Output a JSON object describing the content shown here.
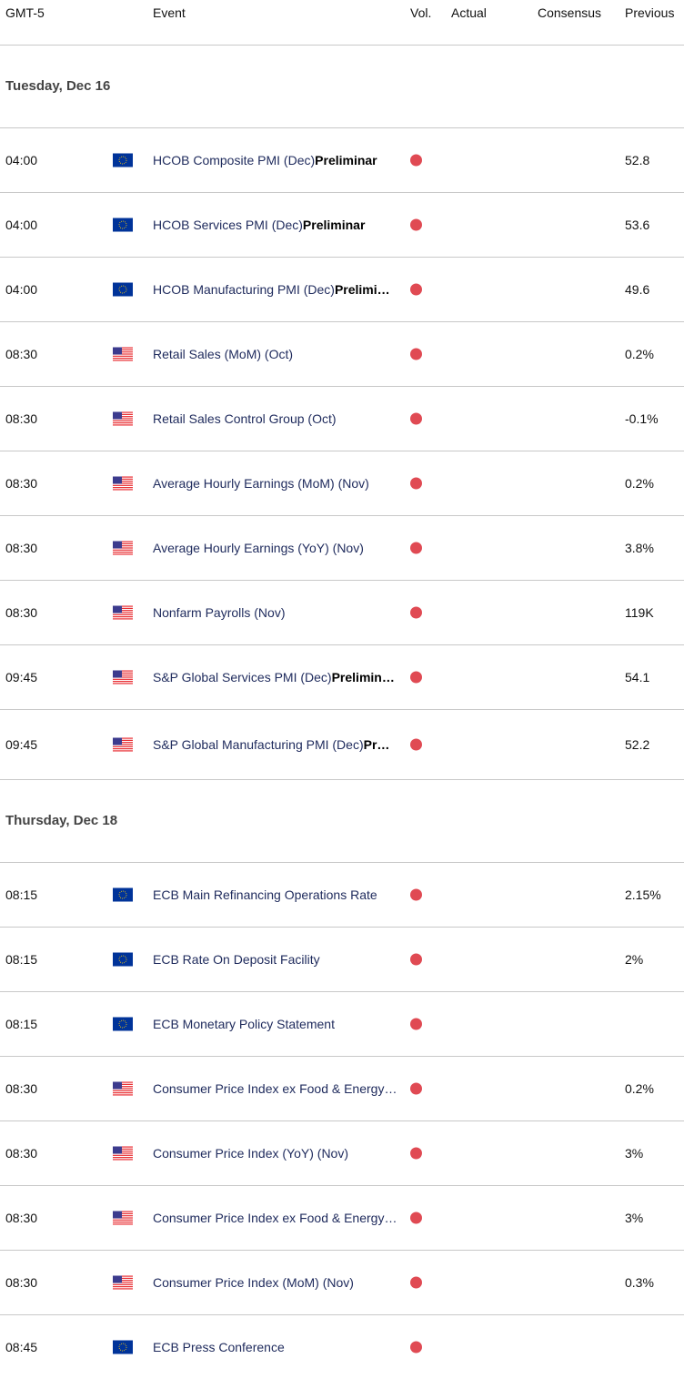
{
  "header": {
    "tz": "GMT-5",
    "event": "Event",
    "vol": "Vol.",
    "actual": "Actual",
    "consensus": "Consensus",
    "previous": "Previous"
  },
  "colors": {
    "dot": "#e04a53",
    "event_text": "#1e2a5c"
  },
  "days": [
    {
      "label": "Tuesday, Dec 16",
      "events": [
        {
          "time": "04:00",
          "flag": "eu-flag-icon",
          "name": "HCOB Composite PMI (Dec)",
          "bold": "Preliminar",
          "previous": "52.8"
        },
        {
          "time": "04:00",
          "flag": "eu-flag-icon",
          "name": "HCOB Services PMI (Dec)",
          "bold": "Preliminar",
          "previous": "53.6"
        },
        {
          "time": "04:00",
          "flag": "eu-flag-icon",
          "name": "HCOB Manufacturing PMI (Dec)",
          "bold": "Prelimi…",
          "previous": "49.6"
        },
        {
          "time": "08:30",
          "flag": "us-flag-icon",
          "name": "Retail Sales (MoM) (Oct)",
          "bold": "",
          "previous": "0.2%"
        },
        {
          "time": "08:30",
          "flag": "us-flag-icon",
          "name": "Retail Sales Control Group (Oct)",
          "bold": "",
          "previous": "-0.1%"
        },
        {
          "time": "08:30",
          "flag": "us-flag-icon",
          "name": "Average Hourly Earnings (MoM) (Nov)",
          "bold": "",
          "previous": "0.2%"
        },
        {
          "time": "08:30",
          "flag": "us-flag-icon",
          "name": "Average Hourly Earnings (YoY) (Nov)",
          "bold": "",
          "previous": "3.8%"
        },
        {
          "time": "08:30",
          "flag": "us-flag-icon",
          "name": "Nonfarm Payrolls (Nov)",
          "bold": "",
          "previous": "119K"
        },
        {
          "time": "09:45",
          "flag": "us-flag-icon",
          "name": "S&P Global Services PMI (Dec)",
          "bold": "Prelimin…",
          "previous": "54.1"
        },
        {
          "time": "09:45",
          "flag": "us-flag-icon",
          "name": "S&P Global Manufacturing PMI (Dec)",
          "bold": "Pr…",
          "previous": "52.2"
        }
      ]
    },
    {
      "label": "Thursday, Dec 18",
      "events": [
        {
          "time": "08:15",
          "flag": "eu-flag-icon",
          "name": "ECB Main Refinancing Operations Rate",
          "bold": "",
          "previous": "2.15%"
        },
        {
          "time": "08:15",
          "flag": "eu-flag-icon",
          "name": "ECB Rate On Deposit Facility",
          "bold": "",
          "previous": "2%"
        },
        {
          "time": "08:15",
          "flag": "eu-flag-icon",
          "name": "ECB Monetary Policy Statement",
          "bold": "",
          "previous": ""
        },
        {
          "time": "08:30",
          "flag": "us-flag-icon",
          "name": "Consumer Price Index ex Food & Energy…",
          "bold": "",
          "previous": "0.2%"
        },
        {
          "time": "08:30",
          "flag": "us-flag-icon",
          "name": "Consumer Price Index (YoY) (Nov)",
          "bold": "",
          "previous": "3%"
        },
        {
          "time": "08:30",
          "flag": "us-flag-icon",
          "name": "Consumer Price Index ex Food & Energy…",
          "bold": "",
          "previous": "3%"
        },
        {
          "time": "08:30",
          "flag": "us-flag-icon",
          "name": "Consumer Price Index (MoM) (Nov)",
          "bold": "",
          "previous": "0.3%"
        },
        {
          "time": "08:45",
          "flag": "eu-flag-icon",
          "name": "ECB Press Conference",
          "bold": "",
          "previous": ""
        }
      ]
    }
  ]
}
